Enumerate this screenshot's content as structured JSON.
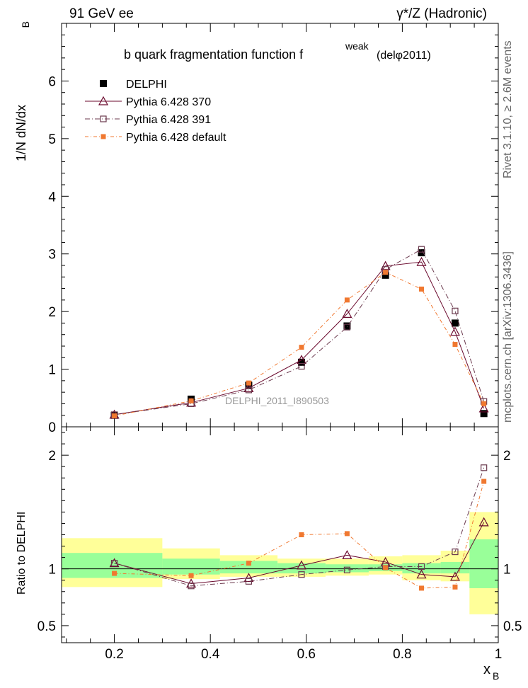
{
  "header": {
    "left": "91 GeV ee",
    "right": "γ*/Z (Hadronic)"
  },
  "side_text": {
    "top": "Rivet 3.1.10, ≥ 2.6M events",
    "bottom": "mcplots.cern.ch [arXiv:1306.3436]"
  },
  "chart_data": [
    {
      "type": "line",
      "title": "b quark fragmentation function f",
      "title_sup": "weak",
      "title_suffix": "(delφ2011)",
      "watermark": "DELPHI_2011_I890503",
      "ylabel": "1/N dN/dx",
      "ylabel_sub": "B",
      "xlim": [
        0.09,
        1.0
      ],
      "ylim": [
        0,
        7.0
      ],
      "yticks": [
        0,
        1,
        2,
        3,
        4,
        5,
        6
      ],
      "x": [
        0.2,
        0.36,
        0.48,
        0.59,
        0.685,
        0.765,
        0.84,
        0.91,
        0.97
      ],
      "series": [
        {
          "name": "DELPHI",
          "color": "#000000",
          "values": [
            0.2,
            0.48,
            0.72,
            1.12,
            1.75,
            2.63,
            3.02,
            1.8,
            0.23
          ]
        },
        {
          "name": "Pythia 6.428 370",
          "color": "#6b0a2e",
          "values": [
            0.21,
            0.42,
            0.67,
            1.16,
            1.96,
            2.79,
            2.86,
            1.65,
            0.32
          ]
        },
        {
          "name": "Pythia 6.428 391",
          "color": "#6b3a4e",
          "values": [
            0.21,
            0.4,
            0.64,
            1.05,
            1.73,
            2.73,
            3.08,
            2.01,
            0.44
          ]
        },
        {
          "name": "Pythia 6.428 default",
          "color": "#f07830",
          "values": [
            0.19,
            0.45,
            0.76,
            1.38,
            2.2,
            2.68,
            2.39,
            1.43,
            0.4
          ]
        }
      ]
    },
    {
      "type": "line",
      "ylabel": "Ratio to DELPHI",
      "xlabel": "x",
      "xlabel_sub": "B",
      "xlim": [
        0.09,
        1.0
      ],
      "ylim": [
        0.35,
        2.25
      ],
      "yticks": [
        0.5,
        1,
        2
      ],
      "xticks": [
        0.2,
        0.4,
        0.6,
        0.8,
        1
      ],
      "x": [
        0.2,
        0.36,
        0.48,
        0.59,
        0.685,
        0.765,
        0.84,
        0.91,
        0.97
      ],
      "bands": {
        "edges": [
          0.09,
          0.3,
          0.42,
          0.54,
          0.64,
          0.73,
          0.8,
          0.88,
          0.94,
          1.0
        ],
        "green": [
          [
            0.92,
            1.14
          ],
          [
            0.95,
            1.09
          ],
          [
            0.96,
            1.07
          ],
          [
            0.96,
            1.05
          ],
          [
            0.97,
            1.04
          ],
          [
            0.98,
            1.04
          ],
          [
            0.96,
            1.05
          ],
          [
            0.96,
            1.06
          ],
          [
            0.83,
            1.26
          ]
        ],
        "yellow": [
          [
            0.84,
            1.27
          ],
          [
            0.91,
            1.18
          ],
          [
            0.93,
            1.12
          ],
          [
            0.93,
            1.09
          ],
          [
            0.94,
            1.09
          ],
          [
            0.95,
            1.11
          ],
          [
            0.9,
            1.12
          ],
          [
            0.89,
            1.16
          ],
          [
            0.6,
            1.5
          ]
        ]
      },
      "series": [
        {
          "name": "Pythia 6.428 370",
          "color": "#6b0a2e",
          "values": [
            1.05,
            0.87,
            0.92,
            1.03,
            1.12,
            1.06,
            0.95,
            0.93,
            1.41
          ]
        },
        {
          "name": "Pythia 6.428 391",
          "color": "#6b3a4e",
          "values": [
            1.05,
            0.85,
            0.89,
            0.95,
            0.99,
            1.02,
            1.02,
            1.15,
            1.89
          ]
        },
        {
          "name": "Pythia 6.428 default",
          "color": "#f07830",
          "values": [
            0.96,
            0.94,
            1.05,
            1.3,
            1.31,
            1.01,
            0.83,
            0.84,
            1.77
          ]
        }
      ]
    }
  ]
}
